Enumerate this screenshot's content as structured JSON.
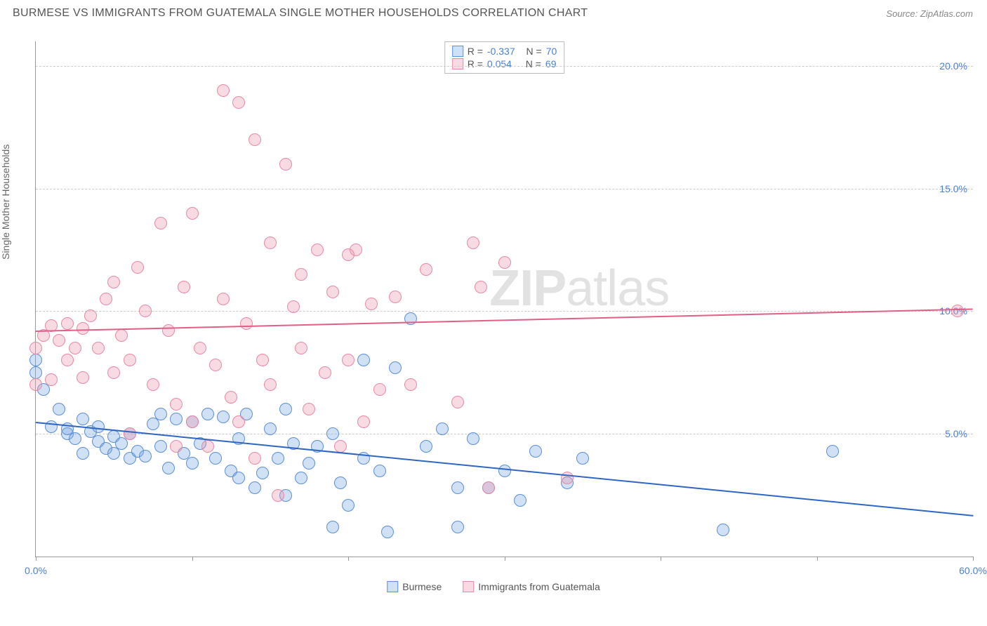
{
  "title": "BURMESE VS IMMIGRANTS FROM GUATEMALA SINGLE MOTHER HOUSEHOLDS CORRELATION CHART",
  "source_label": "Source:",
  "source_name": "ZipAtlas.com",
  "watermark": {
    "part1": "ZIP",
    "part2": "atlas"
  },
  "y_axis_label": "Single Mother Households",
  "chart": {
    "type": "scatter",
    "xlim": [
      0,
      60
    ],
    "ylim": [
      0,
      21
    ],
    "x_ticks": [
      0,
      10,
      20,
      30,
      40,
      50,
      60
    ],
    "x_tick_labels": {
      "0": "0.0%",
      "60": "60.0%"
    },
    "y_gridlines": [
      5,
      10,
      15,
      20
    ],
    "y_tick_labels": {
      "5": "5.0%",
      "10": "10.0%",
      "15": "15.0%",
      "20": "20.0%"
    },
    "grid_color": "#cccccc",
    "background_color": "#ffffff",
    "axis_color": "#999999",
    "tick_label_color": "#4a7fd8",
    "marker_radius": 9,
    "marker_border_width": 1.5,
    "series": [
      {
        "name": "Burmese",
        "fill_color": "rgba(120,165,225,0.35)",
        "border_color": "#5b8fd6",
        "trend_color": "#2f66c4",
        "R": "-0.337",
        "N": "70",
        "trendline": {
          "x1": 0,
          "y1": 5.5,
          "x2": 60,
          "y2": 1.7
        },
        "points": [
          [
            0,
            7.5
          ],
          [
            0,
            8.0
          ],
          [
            0.5,
            6.8
          ],
          [
            1,
            5.3
          ],
          [
            1.5,
            6.0
          ],
          [
            2,
            5.0
          ],
          [
            2,
            5.2
          ],
          [
            2.5,
            4.8
          ],
          [
            3,
            5.6
          ],
          [
            3,
            4.2
          ],
          [
            3.5,
            5.1
          ],
          [
            4,
            4.7
          ],
          [
            4,
            5.3
          ],
          [
            4.5,
            4.4
          ],
          [
            5,
            4.9
          ],
          [
            5,
            4.2
          ],
          [
            5.5,
            4.6
          ],
          [
            6,
            4.0
          ],
          [
            6,
            5.0
          ],
          [
            6.5,
            4.3
          ],
          [
            7,
            4.1
          ],
          [
            7.5,
            5.4
          ],
          [
            8,
            4.5
          ],
          [
            8.5,
            3.6
          ],
          [
            9,
            5.6
          ],
          [
            9.5,
            4.2
          ],
          [
            10,
            3.8
          ],
          [
            10,
            5.5
          ],
          [
            10.5,
            4.6
          ],
          [
            11,
            5.8
          ],
          [
            11.5,
            4.0
          ],
          [
            12,
            5.7
          ],
          [
            12.5,
            3.5
          ],
          [
            13,
            4.8
          ],
          [
            13.5,
            5.8
          ],
          [
            14,
            2.8
          ],
          [
            14.5,
            3.4
          ],
          [
            15,
            5.2
          ],
          [
            15.5,
            4.0
          ],
          [
            16,
            2.5
          ],
          [
            16.5,
            4.6
          ],
          [
            17,
            3.2
          ],
          [
            17.5,
            3.8
          ],
          [
            18,
            4.5
          ],
          [
            19,
            1.2
          ],
          [
            19.5,
            3.0
          ],
          [
            20,
            2.1
          ],
          [
            21,
            8.0
          ],
          [
            21,
            4.0
          ],
          [
            22,
            3.5
          ],
          [
            22.5,
            1.0
          ],
          [
            23,
            7.7
          ],
          [
            25,
            4.5
          ],
          [
            26,
            5.2
          ],
          [
            27,
            2.8
          ],
          [
            27,
            1.2
          ],
          [
            28,
            4.8
          ],
          [
            29,
            2.8
          ],
          [
            30,
            3.5
          ],
          [
            31,
            2.3
          ],
          [
            32,
            4.3
          ],
          [
            34,
            3.0
          ],
          [
            35,
            4.0
          ],
          [
            24,
            9.7
          ],
          [
            44,
            1.1
          ],
          [
            51,
            4.3
          ],
          [
            16,
            6.0
          ],
          [
            19,
            5.0
          ],
          [
            8,
            5.8
          ],
          [
            13,
            3.2
          ]
        ]
      },
      {
        "name": "Immigrants from Guatemala",
        "fill_color": "rgba(235,150,175,0.35)",
        "border_color": "#e789a5",
        "trend_color": "#e15f86",
        "R": "0.054",
        "N": "69",
        "trendline": {
          "x1": 0,
          "y1": 9.2,
          "x2": 60,
          "y2": 10.1
        },
        "points": [
          [
            0,
            7.0
          ],
          [
            0,
            8.5
          ],
          [
            0.5,
            9.0
          ],
          [
            1,
            7.2
          ],
          [
            1,
            9.4
          ],
          [
            1.5,
            8.8
          ],
          [
            2,
            8.0
          ],
          [
            2,
            9.5
          ],
          [
            2.5,
            8.5
          ],
          [
            3,
            9.3
          ],
          [
            3,
            7.3
          ],
          [
            3.5,
            9.8
          ],
          [
            4,
            8.5
          ],
          [
            4.5,
            10.5
          ],
          [
            5,
            7.5
          ],
          [
            5,
            11.2
          ],
          [
            5.5,
            9.0
          ],
          [
            6,
            8.0
          ],
          [
            6.5,
            11.8
          ],
          [
            7,
            10.0
          ],
          [
            7.5,
            7.0
          ],
          [
            8,
            13.6
          ],
          [
            8.5,
            9.2
          ],
          [
            9,
            6.2
          ],
          [
            9.5,
            11.0
          ],
          [
            10,
            5.5
          ],
          [
            10.5,
            8.5
          ],
          [
            11,
            4.5
          ],
          [
            11.5,
            7.8
          ],
          [
            12,
            19.0
          ],
          [
            12.5,
            6.5
          ],
          [
            13,
            18.5
          ],
          [
            13.5,
            9.5
          ],
          [
            14,
            4.0
          ],
          [
            14,
            17.0
          ],
          [
            14.5,
            8.0
          ],
          [
            15,
            12.8
          ],
          [
            15.5,
            2.5
          ],
          [
            16,
            16.0
          ],
          [
            16.5,
            10.2
          ],
          [
            17,
            8.5
          ],
          [
            17.5,
            6.0
          ],
          [
            18,
            12.5
          ],
          [
            18.5,
            7.5
          ],
          [
            19,
            10.8
          ],
          [
            19.5,
            4.5
          ],
          [
            20,
            12.3
          ],
          [
            20,
            8.0
          ],
          [
            20.5,
            12.5
          ],
          [
            21,
            5.5
          ],
          [
            21.5,
            10.3
          ],
          [
            22,
            6.8
          ],
          [
            23,
            10.6
          ],
          [
            24,
            7.0
          ],
          [
            25,
            11.7
          ],
          [
            27,
            6.3
          ],
          [
            28,
            12.8
          ],
          [
            28.5,
            11.0
          ],
          [
            29,
            2.8
          ],
          [
            30,
            12.0
          ],
          [
            34,
            3.2
          ],
          [
            59,
            10.0
          ],
          [
            10,
            14.0
          ],
          [
            12,
            10.5
          ],
          [
            15,
            7.0
          ],
          [
            6,
            5.0
          ],
          [
            13,
            5.5
          ],
          [
            9,
            4.5
          ],
          [
            17,
            11.5
          ]
        ]
      }
    ]
  },
  "legend_box": {
    "r_label": "R =",
    "n_label": "N ="
  },
  "bottom_legend": {
    "items": [
      "Burmese",
      "Immigrants from Guatemala"
    ]
  }
}
